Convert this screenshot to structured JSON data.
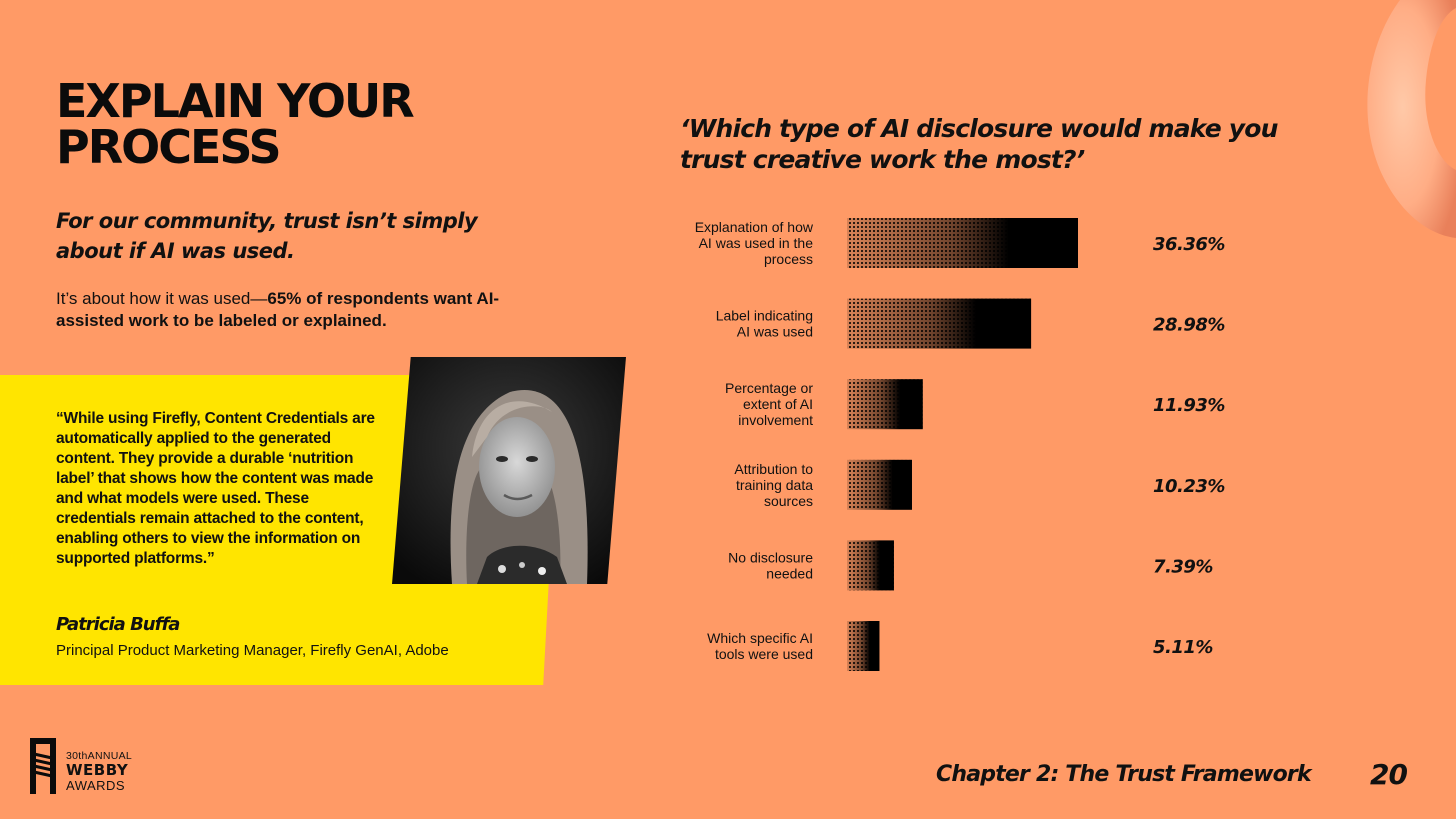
{
  "header": {
    "title": "EXPLAIN YOUR PROCESS",
    "subhead": "For our community, trust isn’t simply about if AI was used.",
    "body_prefix": "It’s about how it was used—",
    "body_bold": "65% of respondents want AI-assisted work to be labeled or explained."
  },
  "quote": {
    "text": "“While using Firefly, Content Credentials are automatically applied to the generated content. They provide a durable ‘nutrition label’ that shows how the content was made and what models were used. These credentials remain attached to the content, enabling others to view the information on supported platforms.”",
    "name": "Patricia Buffa",
    "role": "Principal Product Marketing Manager, Firefly GenAI, Adobe"
  },
  "logo": {
    "edition": "30thANNUAL",
    "name": "WEBBY",
    "sub": "AWARDS"
  },
  "footer": {
    "chapter": "Chapter 2: The Trust Framework",
    "page": "20"
  },
  "colors": {
    "background": "#FF9A66",
    "quote_panel": "#FFE500",
    "bar": "#000000"
  },
  "chart_data": {
    "type": "bar",
    "orientation": "horizontal",
    "title": "‘Which type of AI disclosure would make you trust creative work the most?’",
    "categories": [
      [
        "Explanation of how",
        "AI was used in the",
        "process"
      ],
      [
        "Label indicating",
        "AI was used"
      ],
      [
        "Percentage or",
        "extent of AI",
        "involvement"
      ],
      [
        "Attribution to",
        "training data",
        "sources"
      ],
      [
        "No disclosure",
        "needed"
      ],
      [
        "Which specific AI",
        "tools were used"
      ]
    ],
    "values": [
      36.36,
      28.98,
      11.93,
      10.23,
      7.39,
      5.11
    ],
    "value_labels": [
      "36.36%",
      "28.98%",
      "11.93%",
      "10.23%",
      "7.39%",
      "5.11%"
    ],
    "unit": "%",
    "xlim": [
      0,
      36.36
    ],
    "grid": false
  }
}
